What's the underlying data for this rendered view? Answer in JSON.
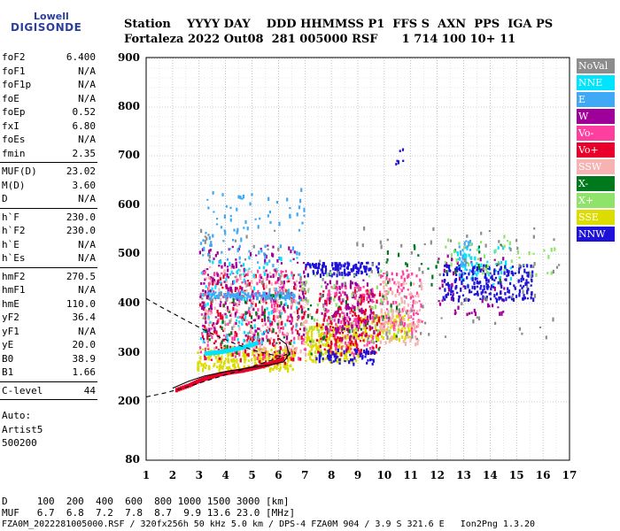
{
  "logo": {
    "line1": "Lowell",
    "line2": "DIGISONDE"
  },
  "header": {
    "row1": "Station    YYYY DAY    DDD HHMMSS P1  FFS S  AXN  PPS  IGA PS",
    "row2": "Fortaleza 2022 Out08  281 005000 RSF      1 714 100 10+ 11"
  },
  "params": {
    "group1": [
      {
        "k": "foF2",
        "v": "6.400"
      },
      {
        "k": "foF1",
        "v": "N/A"
      },
      {
        "k": "foF1p",
        "v": "N/A"
      },
      {
        "k": "foE",
        "v": "N/A"
      },
      {
        "k": "foEp",
        "v": "0.52"
      },
      {
        "k": "fxI",
        "v": "6.80"
      },
      {
        "k": "foEs",
        "v": "N/A"
      },
      {
        "k": "fmin",
        "v": "2.35"
      }
    ],
    "group2": [
      {
        "k": "MUF(D)",
        "v": "23.02"
      },
      {
        "k": "M(D)",
        "v": "3.60"
      },
      {
        "k": "D",
        "v": "N/A"
      }
    ],
    "group3": [
      {
        "k": "h`F",
        "v": "230.0"
      },
      {
        "k": "h`F2",
        "v": "230.0"
      },
      {
        "k": "h`E",
        "v": "N/A"
      },
      {
        "k": "h`Es",
        "v": "N/A"
      }
    ],
    "group4": [
      {
        "k": "hmF2",
        "v": "270.5"
      },
      {
        "k": "hmF1",
        "v": "N/A"
      },
      {
        "k": "hmE",
        "v": "110.0"
      },
      {
        "k": "yF2",
        "v": "36.4"
      },
      {
        "k": "yF1",
        "v": "N/A"
      },
      {
        "k": "yE",
        "v": "20.0"
      },
      {
        "k": "B0",
        "v": "38.9"
      },
      {
        "k": "B1",
        "v": "1.66"
      }
    ],
    "group5": [
      {
        "k": "C-level",
        "v": "44"
      }
    ],
    "auto": [
      "Auto:",
      "Artist5",
      "500200"
    ]
  },
  "legend": [
    {
      "label": "NoVal",
      "color": "#8c8c8c"
    },
    {
      "label": "NNE",
      "color": "#00e5ff"
    },
    {
      "label": "E",
      "color": "#3fa9f5"
    },
    {
      "label": "W",
      "color": "#a0009a"
    },
    {
      "label": "Vo-",
      "color": "#ff3fa0"
    },
    {
      "label": "Vo+",
      "color": "#e8002a"
    },
    {
      "label": "SSW",
      "color": "#f7b2b2"
    },
    {
      "label": "X-",
      "color": "#00791c"
    },
    {
      "label": "X+",
      "color": "#8fe36a"
    },
    {
      "label": "SSE",
      "color": "#dcdc00"
    },
    {
      "label": "NNW",
      "color": "#1e12d8"
    }
  ],
  "footer": {
    "row1": "D     100  200  400  600  800 1000 1500 3000 [km]",
    "row2": "MUF   6.7  6.8  7.2  7.8  8.7  9.9 13.6 23.0 [MHz]",
    "row3": "FZA0M_2022281005000.RSF / 320fx256h 50 kHz 5.0 km / DPS-4 FZA0M 904 / 3.9 S 321.6 E   Ion2Png 1.3.20"
  },
  "chart_data": {
    "type": "scatter",
    "xlim": [
      1,
      17
    ],
    "ylim": [
      80,
      900
    ],
    "x_ticks": [
      "1",
      "2",
      "3",
      "4",
      "5",
      "6",
      "7",
      "8",
      "9",
      "10",
      "11",
      "12",
      "13",
      "14",
      "15",
      "16",
      "17"
    ],
    "y_ticks": [
      "80",
      "200",
      "300",
      "400",
      "500",
      "600",
      "700",
      "800",
      "900"
    ],
    "grid": true,
    "legend_position": "right",
    "profile_curve": {
      "x": [
        2.0,
        2.6,
        3.2,
        4.0,
        4.8,
        5.6,
        6.2,
        6.4,
        6.3,
        6.0
      ],
      "y": [
        228,
        242,
        253,
        262,
        269,
        275,
        282,
        298,
        318,
        330
      ]
    },
    "dashed_curves": [
      {
        "x": [
          1.0,
          1.7,
          2.4,
          3.1,
          3.8,
          4.5,
          5.2,
          6.0,
          6.4
        ],
        "y": [
          210,
          218,
          228,
          240,
          252,
          264,
          276,
          290,
          300
        ]
      },
      {
        "x": [
          1.0,
          1.6,
          2.3,
          3.0,
          3.7,
          4.4,
          5.1,
          5.8,
          6.2
        ],
        "y": [
          410,
          392,
          372,
          352,
          334,
          318,
          305,
          296,
          292
        ]
      }
    ],
    "trace_series": [
      {
        "name": "Vo+",
        "x": [
          2.1,
          2.6,
          3.0,
          3.4,
          3.8,
          4.2,
          4.6,
          5.0,
          5.4,
          5.8,
          6.2
        ],
        "y": [
          225,
          235,
          245,
          252,
          258,
          262,
          265,
          270,
          275,
          282,
          290
        ]
      },
      {
        "name": "NNE",
        "x": [
          3.2,
          3.6,
          4.0,
          4.4,
          4.8,
          5.2
        ],
        "y": [
          300,
          302,
          305,
          310,
          315,
          322
        ]
      }
    ],
    "cloud_series": [
      {
        "name": "SSE",
        "color": "#dcdc00",
        "clusters": [
          {
            "x0": 2.9,
            "x1": 6.6,
            "y0": 268,
            "y1": 315,
            "n": 260
          },
          {
            "x0": 7.0,
            "x1": 9.0,
            "y0": 285,
            "y1": 360,
            "n": 200
          },
          {
            "x0": 9.0,
            "x1": 11.0,
            "y0": 330,
            "y1": 380,
            "n": 120
          }
        ]
      },
      {
        "name": "Vo-",
        "color": "#ff3fa0",
        "clusters": [
          {
            "x0": 3.0,
            "x1": 7.0,
            "y0": 290,
            "y1": 470,
            "n": 220
          },
          {
            "x0": 7.6,
            "x1": 9.6,
            "y0": 300,
            "y1": 440,
            "n": 160
          },
          {
            "x0": 9.8,
            "x1": 11.4,
            "y0": 340,
            "y1": 470,
            "n": 90
          }
        ]
      },
      {
        "name": "Vo+",
        "color": "#e8002a",
        "clusters": [
          {
            "x0": 3.0,
            "x1": 7.0,
            "y0": 280,
            "y1": 460,
            "n": 200
          },
          {
            "x0": 7.4,
            "x1": 9.8,
            "y0": 300,
            "y1": 430,
            "n": 150
          }
        ]
      },
      {
        "name": "SSW",
        "color": "#f7b2b2",
        "clusters": [
          {
            "x0": 3.2,
            "x1": 7.2,
            "y0": 300,
            "y1": 480,
            "n": 180
          },
          {
            "x0": 9.8,
            "x1": 11.4,
            "y0": 320,
            "y1": 450,
            "n": 110
          }
        ]
      },
      {
        "name": "W",
        "color": "#a0009a",
        "clusters": [
          {
            "x0": 3.0,
            "x1": 7.0,
            "y0": 330,
            "y1": 520,
            "n": 180
          },
          {
            "x0": 7.6,
            "x1": 9.6,
            "y0": 330,
            "y1": 450,
            "n": 100
          },
          {
            "x0": 12.0,
            "x1": 14.6,
            "y0": 380,
            "y1": 500,
            "n": 60
          }
        ]
      },
      {
        "name": "E",
        "color": "#3fa9f5",
        "clusters": [
          {
            "x0": 3.2,
            "x1": 6.6,
            "y0": 412,
            "y1": 425,
            "n": 120
          },
          {
            "x0": 3.0,
            "x1": 7.0,
            "y0": 480,
            "y1": 640,
            "n": 90
          },
          {
            "x0": 12.8,
            "x1": 13.4,
            "y0": 460,
            "y1": 530,
            "n": 40
          }
        ]
      },
      {
        "name": "NNE",
        "color": "#00e5ff",
        "clusters": [
          {
            "x0": 3.0,
            "x1": 6.8,
            "y0": 320,
            "y1": 500,
            "n": 90
          },
          {
            "x0": 12.6,
            "x1": 14.8,
            "y0": 440,
            "y1": 520,
            "n": 50
          }
        ]
      },
      {
        "name": "NNW",
        "color": "#1e12d8",
        "clusters": [
          {
            "x0": 7.0,
            "x1": 9.8,
            "y0": 460,
            "y1": 485,
            "n": 120
          },
          {
            "x0": 7.4,
            "x1": 9.6,
            "y0": 280,
            "y1": 310,
            "n": 60
          },
          {
            "x0": 12.2,
            "x1": 15.6,
            "y0": 410,
            "y1": 480,
            "n": 220
          },
          {
            "x0": 10.4,
            "x1": 10.7,
            "y0": 680,
            "y1": 725,
            "n": 6
          }
        ]
      },
      {
        "name": "X-",
        "color": "#00791c",
        "clusters": [
          {
            "x0": 3.0,
            "x1": 10.6,
            "y0": 300,
            "y1": 420,
            "n": 70
          },
          {
            "x0": 10.0,
            "x1": 14.4,
            "y0": 440,
            "y1": 530,
            "n": 30
          }
        ]
      },
      {
        "name": "X+",
        "color": "#8fe36a",
        "clusters": [
          {
            "x0": 6.8,
            "x1": 10.6,
            "y0": 320,
            "y1": 470,
            "n": 60
          },
          {
            "x0": 12.2,
            "x1": 16.5,
            "y0": 460,
            "y1": 540,
            "n": 40
          }
        ]
      },
      {
        "name": "NoVal",
        "color": "#8c8c8c",
        "clusters": [
          {
            "x0": 3.0,
            "x1": 16.8,
            "y0": 330,
            "y1": 560,
            "n": 140
          }
        ]
      }
    ]
  }
}
